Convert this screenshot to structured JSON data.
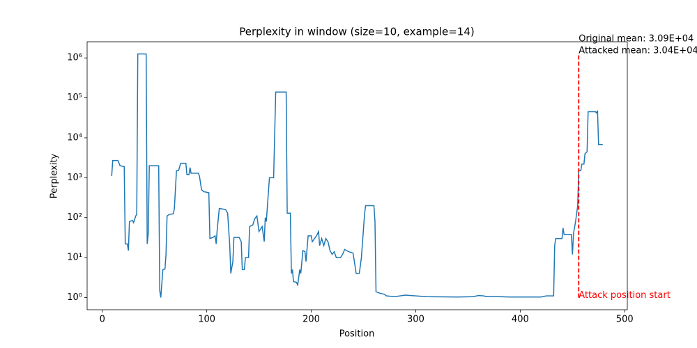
{
  "chart_data": {
    "type": "line",
    "title": "Perplexity in window (size=10, example=14)",
    "xlabel": "Position",
    "ylabel": "Perplexity",
    "log_y": true,
    "x": [
      9,
      10,
      15,
      17,
      21,
      22,
      24,
      25,
      26,
      29,
      30,
      32,
      33,
      34,
      42,
      43,
      44,
      45,
      54,
      55,
      56,
      58,
      60,
      61,
      62,
      64,
      68,
      69,
      71,
      73,
      75,
      80,
      81,
      83,
      84,
      85,
      92,
      93,
      95,
      97,
      102,
      103,
      106,
      108,
      109,
      110,
      112,
      118,
      120,
      122,
      123,
      125,
      126,
      131,
      133,
      134,
      136,
      137,
      140,
      141,
      144,
      146,
      148,
      150,
      153,
      155,
      156,
      157,
      160,
      164,
      166,
      176,
      177,
      180,
      181,
      182,
      183,
      186,
      187,
      189,
      190,
      192,
      194,
      195,
      197,
      200,
      201,
      205,
      207,
      208,
      210,
      212,
      214,
      216,
      218,
      220,
      222,
      224,
      228,
      230,
      232,
      236,
      240,
      242,
      243,
      246,
      248,
      251,
      252,
      260,
      261,
      262,
      265,
      270,
      272,
      280,
      285,
      290,
      300,
      310,
      340,
      355,
      360,
      365,
      368,
      380,
      390,
      420,
      425,
      432,
      433,
      434,
      440,
      441,
      442,
      449,
      450,
      451,
      453,
      455,
      456,
      458,
      459,
      461,
      462,
      464,
      465,
      472,
      473,
      474,
      475,
      479
    ],
    "series": [
      {
        "name": "Perplexity",
        "color": "#1f77b4",
        "values": [
          1100,
          2700,
          2700,
          2000,
          1900,
          22,
          22,
          15,
          80,
          85,
          75,
          110,
          120,
          1260000,
          1260000,
          22,
          40,
          2000,
          2000,
          1.5,
          1.0,
          5,
          5.2,
          12,
          110,
          120,
          125,
          170,
          1500,
          1500,
          2300,
          2300,
          1200,
          1200,
          1800,
          1300,
          1300,
          1100,
          500,
          450,
          420,
          30,
          32,
          35,
          22,
          50,
          170,
          160,
          130,
          20,
          4,
          8,
          32,
          32,
          25,
          5,
          5,
          10,
          10,
          60,
          65,
          95,
          110,
          45,
          60,
          25,
          100,
          80,
          1000,
          1000,
          140000,
          140000,
          130,
          130,
          4,
          5,
          2.5,
          2.4,
          2,
          5,
          4,
          15,
          14,
          8,
          35,
          35,
          25,
          35,
          45,
          20,
          30,
          20,
          30,
          25,
          15,
          12,
          14,
          10,
          10,
          12,
          16,
          14,
          13,
          6,
          4,
          4,
          10,
          120,
          200,
          200,
          80,
          1.4,
          1.3,
          1.2,
          1.1,
          1.05,
          1.1,
          1.15,
          1.1,
          1.05,
          1.03,
          1.05,
          1.12,
          1.1,
          1.05,
          1.05,
          1.03,
          1.03,
          1.1,
          1.1,
          20,
          30,
          30,
          55,
          38,
          38,
          12,
          40,
          80,
          200,
          1500,
          1500,
          2200,
          2200,
          4000,
          4500,
          45000,
          45000,
          42000,
          48000,
          6800,
          6800
        ]
      }
    ],
    "xlim": [
      -14.5,
      502.5
    ],
    "xticks": [
      0,
      100,
      200,
      300,
      400,
      500
    ],
    "ylim": [
      0.495,
      2540000
    ],
    "yticks": [
      {
        "value": 1,
        "label": "10⁰"
      },
      {
        "value": 10,
        "label": "10¹"
      },
      {
        "value": 100,
        "label": "10²"
      },
      {
        "value": 1000,
        "label": "10³"
      },
      {
        "value": 10000,
        "label": "10⁴"
      },
      {
        "value": 100000,
        "label": "10⁵"
      },
      {
        "value": 1000000,
        "label": "10⁶"
      }
    ],
    "attack_position": 456,
    "attack_color": "#ff0000",
    "attack_label": "Attack position start",
    "original_mean_label": "Original mean: 3.09E+04",
    "attacked_mean_label": "Attacked mean: 3.04E+04"
  }
}
